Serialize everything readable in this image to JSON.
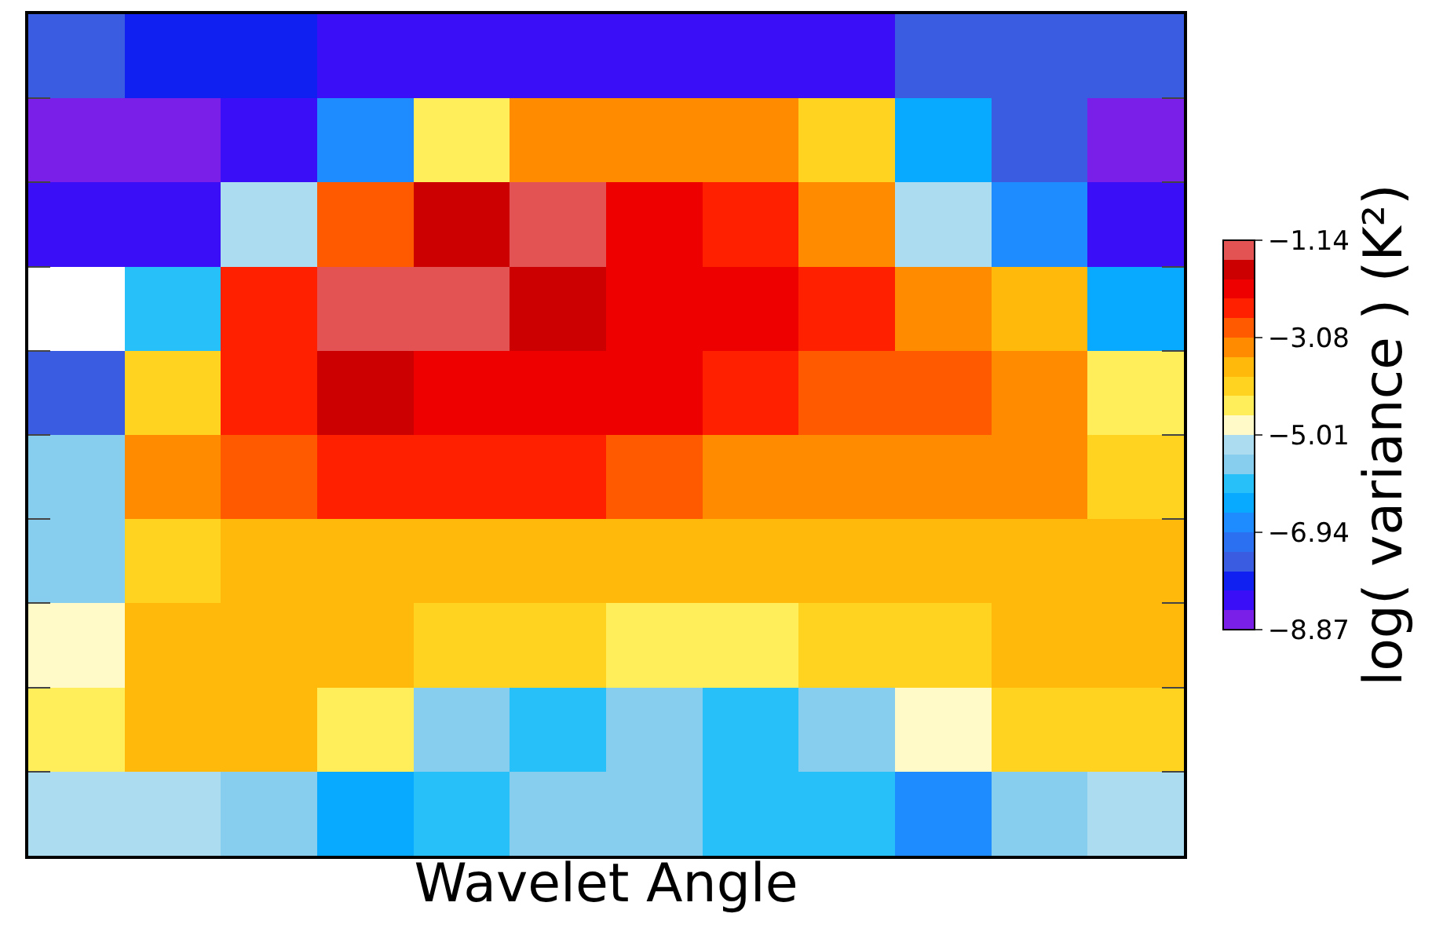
{
  "chart_data": {
    "type": "heatmap",
    "xlabel": "Wavelet Angle",
    "clabel": "log( variance ) (K²)",
    "categories": [
      null,
      null,
      null,
      null,
      null,
      null,
      null,
      null,
      null,
      null,
      null,
      null
    ],
    "y_categories": [
      null,
      null,
      null,
      null,
      null,
      null,
      null,
      null,
      null,
      null
    ],
    "clim": [
      -8.87,
      -1.14
    ],
    "cticks": [
      -1.14,
      -3.08,
      -5.01,
      -6.94,
      -8.87
    ],
    "colors": [
      "#7a1fe8",
      "#3a0ff8",
      "#1020f0",
      "#3a5ce0",
      "#2a70f0",
      "#1e8cff",
      "#08aaff",
      "#28c0f8",
      "#87cdee",
      "#acdcf0",
      "#fffac8",
      "#ffee5a",
      "#ffd320",
      "#ffb90a",
      "#ff8c00",
      "#ff5a00",
      "#ff2000",
      "#ee0000",
      "#cc0000",
      "#e35353"
    ],
    "tick_labels": false,
    "cells": [
      [
        -7.52,
        -7.9,
        -7.9,
        -8.29,
        -8.29,
        -8.29,
        -8.29,
        -8.29,
        -8.29,
        -7.52,
        -7.52,
        -7.52
      ],
      [
        -8.68,
        -8.68,
        -8.29,
        -6.74,
        -4.42,
        -3.26,
        -3.26,
        -3.26,
        -4.04,
        -6.36,
        -7.52,
        -8.68
      ],
      [
        -8.29,
        -8.29,
        -5.2,
        -2.88,
        -1.72,
        -1.33,
        -2.1,
        -2.49,
        -3.26,
        -5.2,
        -6.74,
        -8.29
      ],
      [
        null,
        -5.97,
        -2.49,
        -1.33,
        -1.33,
        -1.72,
        -2.1,
        -2.1,
        -2.49,
        -3.26,
        -3.65,
        -6.36
      ],
      [
        -7.52,
        -4.04,
        -2.49,
        -1.72,
        -2.1,
        -2.1,
        -2.1,
        -2.49,
        -2.88,
        -2.88,
        -3.26,
        -4.42
      ],
      [
        -5.58,
        -3.26,
        -2.88,
        -2.49,
        -2.49,
        -2.49,
        -2.88,
        -3.26,
        -3.26,
        -3.26,
        -3.26,
        -4.04
      ],
      [
        -5.58,
        -4.04,
        -3.65,
        -3.65,
        -3.65,
        -3.65,
        -3.65,
        -3.65,
        -3.65,
        -3.65,
        -3.65,
        -3.65
      ],
      [
        -4.81,
        -3.65,
        -3.65,
        -3.65,
        -4.04,
        -4.04,
        -4.42,
        -4.42,
        -4.04,
        -4.04,
        -3.65,
        -3.65
      ],
      [
        -4.42,
        -3.65,
        -3.65,
        -4.42,
        -5.58,
        -5.97,
        -5.58,
        -5.97,
        -5.58,
        -4.81,
        -4.04,
        -4.04
      ],
      [
        -5.2,
        -5.2,
        -5.58,
        -6.36,
        -5.97,
        -5.58,
        -5.58,
        -5.97,
        -5.97,
        -6.74,
        -5.58,
        -5.2
      ]
    ]
  }
}
